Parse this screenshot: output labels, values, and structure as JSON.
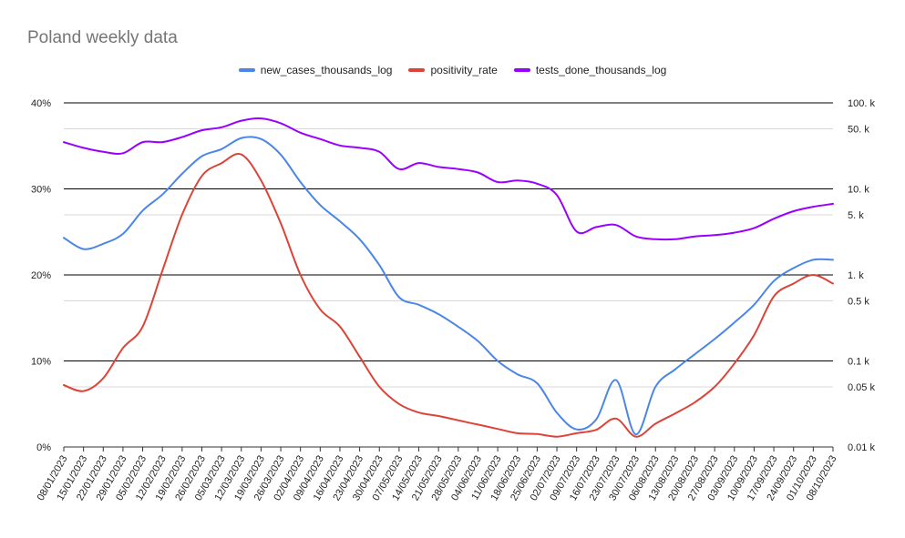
{
  "chart_data": {
    "type": "line",
    "title": "Poland weekly data",
    "xlabel": "",
    "ylabel": "",
    "legend_position": "top",
    "grid": true,
    "x": [
      "08/01/2023",
      "15/01/2023",
      "22/01/2023",
      "29/01/2023",
      "05/02/2023",
      "12/02/2023",
      "19/02/2023",
      "26/02/2023",
      "05/03/2023",
      "12/03/2023",
      "19/03/2023",
      "26/03/2023",
      "02/04/2023",
      "09/04/2023",
      "16/04/2023",
      "23/04/2023",
      "30/04/2023",
      "07/05/2023",
      "14/05/2023",
      "21/05/2023",
      "28/05/2023",
      "04/06/2023",
      "11/06/2023",
      "18/06/2023",
      "25/06/2023",
      "02/07/2023",
      "09/07/2023",
      "16/07/2023",
      "23/07/2023",
      "30/07/2023",
      "06/08/2023",
      "13/08/2023",
      "20/08/2023",
      "27/08/2023",
      "03/09/2023",
      "10/09/2023",
      "17/09/2023",
      "24/09/2023",
      "01/10/2023",
      "08/10/2023"
    ],
    "y_left": {
      "ticks": [
        "0%",
        "10%",
        "20%",
        "30%",
        "40%"
      ],
      "range": [
        0,
        40
      ]
    },
    "y_right": {
      "scale": "log",
      "range": [
        0.01,
        100
      ],
      "ticks": [
        {
          "value": 100,
          "label": "100. k"
        },
        {
          "value": 50,
          "label": "50. k"
        },
        {
          "value": 10,
          "label": "10. k"
        },
        {
          "value": 5,
          "label": "5. k"
        },
        {
          "value": 1,
          "label": "1. k"
        },
        {
          "value": 0.5,
          "label": "0.5 k"
        },
        {
          "value": 0.1,
          "label": "0.1 k"
        },
        {
          "value": 0.05,
          "label": "0.05 k"
        },
        {
          "value": 0.01,
          "label": "0.01 k"
        }
      ]
    },
    "series": [
      {
        "name": "new_cases_thousands_log",
        "color": "#4a86e8",
        "axis": "right",
        "values": [
          2.7,
          2.0,
          2.3,
          3.0,
          5.6,
          8.6,
          15.0,
          24.0,
          29.0,
          39.0,
          38.0,
          25.0,
          12.0,
          6.5,
          4.2,
          2.6,
          1.3,
          0.55,
          0.45,
          0.35,
          0.25,
          0.17,
          0.1,
          0.07,
          0.055,
          0.025,
          0.016,
          0.021,
          0.06,
          0.014,
          0.05,
          0.08,
          0.12,
          0.18,
          0.28,
          0.45,
          0.85,
          1.2,
          1.5,
          1.5
        ]
      },
      {
        "name": "positivity_rate",
        "color": "#db4437",
        "axis": "left",
        "values": [
          7.2,
          6.5,
          8.0,
          11.5,
          14.0,
          20.5,
          27.0,
          31.5,
          33.0,
          34.0,
          31.0,
          26.0,
          20.0,
          16.0,
          14.0,
          10.5,
          7.0,
          5.0,
          4.0,
          3.6,
          3.1,
          2.6,
          2.1,
          1.6,
          1.5,
          1.2,
          1.6,
          2.0,
          3.3,
          1.2,
          2.7,
          3.9,
          5.2,
          7.0,
          9.7,
          13.0,
          17.5,
          19.0,
          20.0,
          19.0
        ]
      },
      {
        "name": "tests_done_thousands_log",
        "color": "#9900ff",
        "axis": "right",
        "values": [
          35.0,
          30.0,
          27.0,
          26.0,
          35.0,
          35.0,
          40.0,
          48.0,
          52.0,
          62.0,
          66.0,
          58.0,
          45.0,
          38.0,
          32.0,
          30.0,
          27.0,
          17.0,
          20.0,
          18.0,
          17.0,
          15.5,
          12.0,
          12.5,
          11.5,
          8.5,
          3.2,
          3.6,
          3.8,
          2.8,
          2.6,
          2.6,
          2.8,
          2.9,
          3.1,
          3.5,
          4.5,
          5.5,
          6.2,
          6.7
        ]
      }
    ]
  }
}
